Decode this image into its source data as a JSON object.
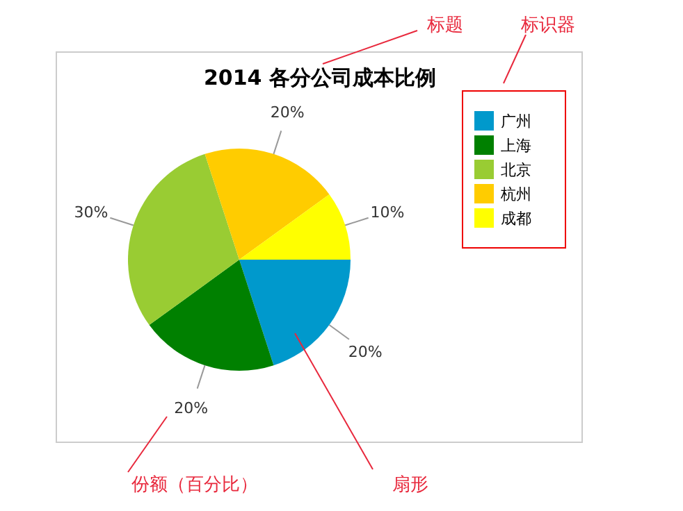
{
  "chart_data": {
    "type": "pie",
    "title": "2014 各分公司成本比例",
    "categories": [
      "广州",
      "上海",
      "北京",
      "杭州",
      "成都"
    ],
    "values": [
      20,
      20,
      30,
      20,
      10
    ],
    "colors": [
      "#0099cc",
      "#008000",
      "#99cc33",
      "#ffcc00",
      "#ffff00"
    ],
    "value_labels": [
      "20%",
      "20%",
      "30%",
      "20%",
      "10%"
    ],
    "legend": "top right",
    "annotations": [
      "标题",
      "标识器",
      "份额（百分比）",
      "扇形"
    ]
  }
}
